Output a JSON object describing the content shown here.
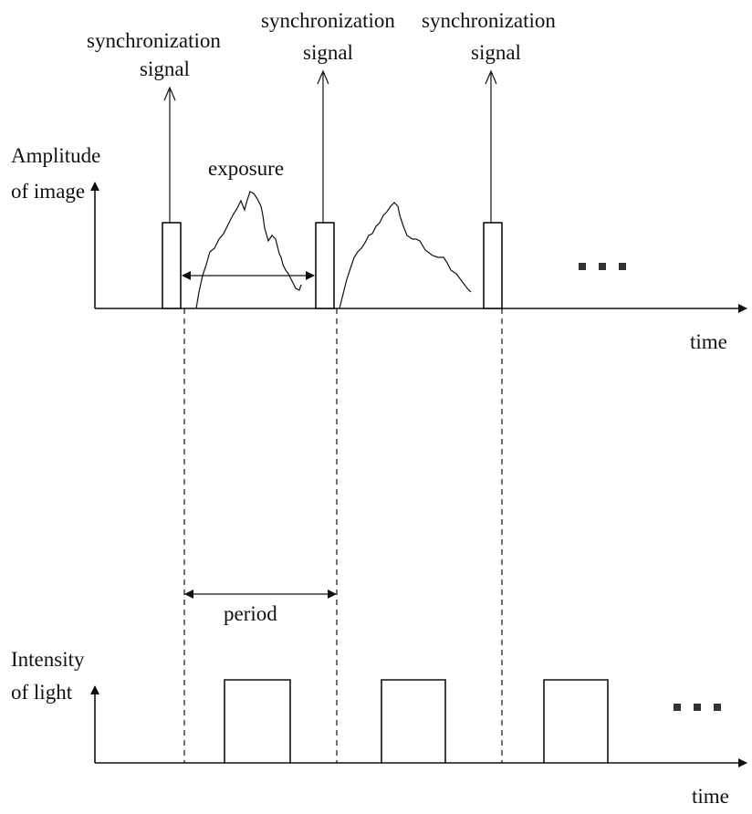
{
  "labels": {
    "sync_line1": "synchronization",
    "sync_line2": "signal",
    "top_axis_line1": "Amplitude",
    "top_axis_line2": "of image",
    "bottom_axis_line1": "Intensity",
    "bottom_axis_line2": "of light",
    "exposure": "exposure",
    "period": "period",
    "time": "time"
  },
  "signals": {
    "sync_pulse_count": 3,
    "light_pulse_count": 3
  },
  "icons": {
    "ellipsis": "ellipsis-icon",
    "arrowhead": "arrow-icon"
  }
}
